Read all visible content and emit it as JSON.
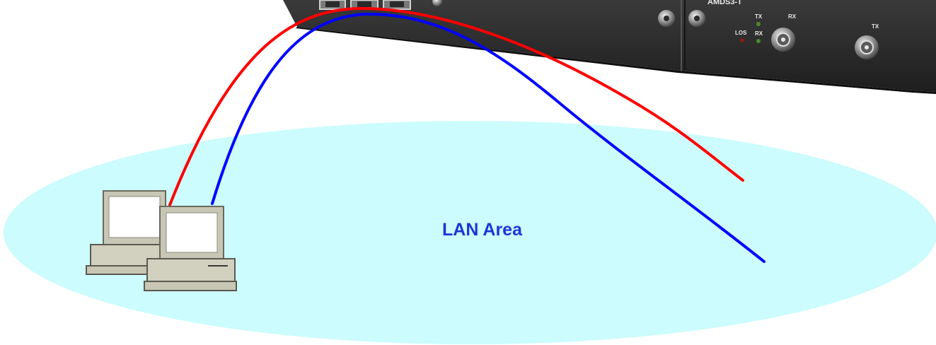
{
  "lan": {
    "label": "LAN Area",
    "fill_color": "#ccfcfd",
    "label_color": "#1c36d6"
  },
  "device": {
    "module_title": "AMDS3-T",
    "labels": {
      "tx_top": "TX",
      "rx_top": "RX",
      "los": "LOS",
      "rx_led": "RX",
      "rx_port": "RX",
      "tx_port": "TX"
    }
  },
  "cables": [
    {
      "name": "red-cable",
      "color": "#ff0000"
    },
    {
      "name": "blue-cable",
      "color": "#0000ff"
    }
  ],
  "computers": [
    {
      "name": "back-computer"
    },
    {
      "name": "front-computer"
    }
  ]
}
